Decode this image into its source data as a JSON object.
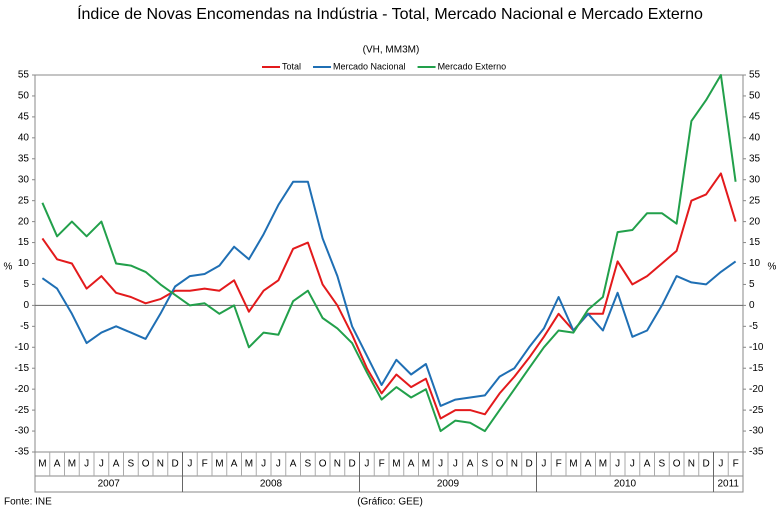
{
  "chart_data": {
    "type": "line",
    "title": "Índice de Novas Encomendas na Indústria - Total, Mercado Nacional e Mercado Externo",
    "subtitle": "(VH, MM3M)",
    "y_label": "%",
    "y2_label": "%",
    "source": "Fonte: INE",
    "credit": "(Gráfico: GEE)",
    "categories": [
      "M",
      "A",
      "M",
      "J",
      "J",
      "A",
      "S",
      "O",
      "N",
      "D",
      "J",
      "F",
      "M",
      "A",
      "M",
      "J",
      "J",
      "A",
      "S",
      "O",
      "N",
      "D",
      "J",
      "F",
      "M",
      "A",
      "M",
      "J",
      "J",
      "A",
      "S",
      "O",
      "N",
      "D",
      "J",
      "F",
      "M",
      "A",
      "M",
      "J",
      "J",
      "A",
      "S",
      "O",
      "N",
      "D",
      "J",
      "F"
    ],
    "years": [
      "2007",
      "2008",
      "2009",
      "2010",
      "2011"
    ],
    "ylim": [
      -35,
      55
    ],
    "yticks": [
      -35,
      -30,
      -25,
      -20,
      -15,
      -10,
      -5,
      0,
      5,
      10,
      15,
      20,
      25,
      30,
      35,
      40,
      45,
      50,
      55
    ],
    "y2lim": [
      -35,
      55
    ],
    "y2ticks": [
      -35,
      -30,
      -25,
      -20,
      -15,
      -10,
      -5,
      0,
      5,
      10,
      15,
      20,
      25,
      30,
      35,
      40,
      45,
      50,
      55
    ],
    "series": [
      {
        "name": "Total",
        "color": "#e31a1c",
        "values": [
          16,
          11,
          10,
          4,
          7,
          3,
          2,
          0.5,
          1.5,
          3.5,
          3.5,
          4,
          3.5,
          6,
          -1.5,
          3.5,
          6,
          13.5,
          15,
          5,
          0,
          -7,
          -15,
          -21,
          -16.5,
          -19.5,
          -17.5,
          -27,
          -25,
          -25,
          -26,
          -21,
          -17,
          -12.5,
          -7.5,
          -2,
          -6,
          -2,
          -2,
          10.5,
          5,
          7,
          10,
          13,
          25,
          26.5,
          31.5,
          20
        ]
      },
      {
        "name": "Mercado Nacional",
        "color": "#1f6fb4",
        "values": [
          6.5,
          4,
          -2,
          -9,
          -6.5,
          -5,
          -6.5,
          -8,
          -2,
          4.5,
          7,
          7.5,
          9.5,
          14,
          11,
          17,
          24,
          29.5,
          29.5,
          16,
          7,
          -5,
          -12,
          -19,
          -13,
          -16.5,
          -14,
          -24,
          -22.5,
          -22,
          -21.5,
          -17,
          -15,
          -10,
          -5.5,
          2,
          -6,
          -2,
          -6,
          3,
          -7.5,
          -6,
          0,
          7,
          5.5,
          5,
          8,
          10.5
        ]
      },
      {
        "name": "Mercado Externo",
        "color": "#22a04b",
        "values": [
          24.5,
          16.5,
          20,
          16.5,
          20,
          10,
          9.5,
          8,
          5,
          2.5,
          0,
          0.5,
          -2,
          0,
          -10,
          -6.5,
          -7,
          1,
          3.5,
          -3,
          -5.5,
          -9,
          -16,
          -22.5,
          -19.5,
          -22,
          -20,
          -30,
          -27.5,
          -28,
          -30,
          -25,
          -20,
          -15,
          -10,
          -6,
          -6.5,
          -1,
          2,
          17.5,
          18,
          22,
          22,
          19.5,
          44,
          49,
          55,
          29.5
        ]
      }
    ]
  }
}
